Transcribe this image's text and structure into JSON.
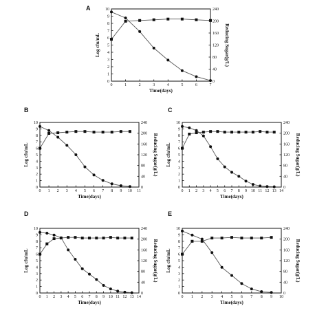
{
  "figure": {
    "background": "#ffffff",
    "ink": "#111111",
    "line_color": "#555555"
  },
  "chart_data": [
    {
      "panel": "A",
      "type": "line",
      "xlabel": "Time(days)",
      "ylabel": "Log cfu/mL",
      "y2label": "Reducing Sugar(g/L)",
      "xlim": [
        0,
        7
      ],
      "ylim": [
        0,
        10
      ],
      "y2lim": [
        0,
        240
      ],
      "xticks": [
        0,
        1,
        2,
        3,
        4,
        5,
        6,
        7
      ],
      "yticks": [
        0,
        1,
        2,
        3,
        4,
        5,
        6,
        7,
        8,
        9,
        10
      ],
      "y2ticks": [
        0,
        40,
        80,
        120,
        160,
        200,
        240
      ],
      "grid": false,
      "legend": "none",
      "series": [
        {
          "axis": "left",
          "marker": "square",
          "x": [
            0,
            1,
            2,
            3,
            4,
            5,
            6,
            7
          ],
          "y": [
            5.8,
            8.3,
            8.4,
            8.5,
            8.6,
            8.6,
            8.5,
            8.4
          ]
        },
        {
          "axis": "right",
          "marker": "circle",
          "x": [
            0,
            1,
            2,
            3,
            4,
            5,
            6,
            7
          ],
          "y": [
            230,
            210,
            165,
            110,
            70,
            35,
            15,
            2
          ]
        }
      ]
    },
    {
      "panel": "B",
      "type": "line",
      "xlabel": "Time(days)",
      "ylabel": "Log cfu/mL",
      "y2label": "Reducing Sugar(g/L)",
      "xlim": [
        0,
        11
      ],
      "ylim": [
        0,
        10
      ],
      "y2lim": [
        0,
        240
      ],
      "xticks": [
        0,
        1,
        2,
        3,
        4,
        5,
        6,
        7,
        8,
        9,
        10,
        11
      ],
      "yticks": [
        0,
        1,
        2,
        3,
        4,
        5,
        6,
        7,
        8,
        9,
        10
      ],
      "y2ticks": [
        0,
        40,
        80,
        120,
        160,
        200,
        240
      ],
      "grid": false,
      "legend": "none",
      "series": [
        {
          "axis": "left",
          "marker": "square",
          "x": [
            0,
            1,
            2,
            3,
            4,
            5,
            6,
            7,
            8,
            9,
            10
          ],
          "y": [
            6,
            8.3,
            8.4,
            8.5,
            8.6,
            8.6,
            8.5,
            8.5,
            8.5,
            8.6,
            8.6
          ]
        },
        {
          "axis": "right",
          "marker": "circle",
          "x": [
            0,
            1,
            2,
            3,
            4,
            5,
            6,
            7,
            8,
            9,
            10
          ],
          "y": [
            225,
            210,
            185,
            155,
            120,
            75,
            45,
            25,
            12,
            5,
            2
          ]
        }
      ]
    },
    {
      "panel": "C",
      "type": "line",
      "xlabel": "Time(days)",
      "ylabel": "Log cfu/mL",
      "y2label": "Reducing Sugar(g/L)",
      "xlim": [
        0,
        14
      ],
      "ylim": [
        0,
        10
      ],
      "y2lim": [
        0,
        240
      ],
      "xticks": [
        0,
        1,
        2,
        3,
        4,
        5,
        6,
        7,
        8,
        9,
        10,
        11,
        12,
        13,
        14
      ],
      "yticks": [
        0,
        1,
        2,
        3,
        4,
        5,
        6,
        7,
        8,
        9,
        10
      ],
      "y2ticks": [
        0,
        40,
        80,
        120,
        160,
        200,
        240
      ],
      "grid": false,
      "legend": "none",
      "series": [
        {
          "axis": "left",
          "marker": "square",
          "x": [
            0,
            1,
            2,
            3,
            4,
            5,
            6,
            7,
            8,
            9,
            10,
            11,
            12,
            13
          ],
          "y": [
            6,
            8.2,
            8.4,
            8.5,
            8.6,
            8.6,
            8.5,
            8.5,
            8.5,
            8.5,
            8.5,
            8.6,
            8.5,
            8.5
          ]
        },
        {
          "axis": "right",
          "marker": "circle",
          "x": [
            0,
            1,
            2,
            3,
            4,
            5,
            6,
            7,
            8,
            9,
            10,
            11,
            12,
            13
          ],
          "y": [
            225,
            220,
            210,
            190,
            150,
            105,
            75,
            55,
            40,
            22,
            10,
            4,
            2,
            1
          ]
        }
      ]
    },
    {
      "panel": "D",
      "type": "line",
      "xlabel": "Time(days)",
      "ylabel": "Log cfu/mL",
      "y2label": "Reducing Sugar(g/L)",
      "xlim": [
        0,
        14
      ],
      "ylim": [
        0,
        10
      ],
      "y2lim": [
        0,
        240
      ],
      "xticks": [
        0,
        1,
        2,
        3,
        4,
        5,
        6,
        7,
        8,
        9,
        10,
        11,
        12,
        13,
        14
      ],
      "yticks": [
        0,
        1,
        2,
        3,
        4,
        5,
        6,
        7,
        8,
        9,
        10
      ],
      "y2ticks": [
        0,
        40,
        80,
        120,
        160,
        200,
        240
      ],
      "grid": false,
      "legend": "none",
      "series": [
        {
          "axis": "left",
          "marker": "square",
          "x": [
            0,
            1,
            2,
            3,
            4,
            5,
            6,
            7,
            8,
            9,
            10,
            11,
            12,
            13
          ],
          "y": [
            6,
            7.6,
            8.4,
            8.5,
            8.6,
            8.6,
            8.5,
            8.5,
            8.5,
            8.5,
            8.6,
            8.5,
            8.5,
            8.5
          ]
        },
        {
          "axis": "right",
          "marker": "circle",
          "x": [
            0,
            1,
            2,
            3,
            4,
            5,
            6,
            7,
            8,
            9,
            10,
            11,
            12,
            13
          ],
          "y": [
            225,
            222,
            215,
            205,
            160,
            125,
            90,
            70,
            50,
            28,
            15,
            7,
            3,
            1
          ]
        }
      ]
    },
    {
      "panel": "E",
      "type": "line",
      "xlabel": "Time(days)",
      "ylabel": "Log cfu/mL",
      "y2label": "Reducing Sugar(g/L)",
      "xlim": [
        0,
        10
      ],
      "ylim": [
        0,
        10
      ],
      "y2lim": [
        0,
        240
      ],
      "xticks": [
        0,
        1,
        2,
        3,
        4,
        5,
        6,
        7,
        8,
        9,
        10
      ],
      "yticks": [
        0,
        1,
        2,
        3,
        4,
        5,
        6,
        7,
        8,
        9,
        10
      ],
      "y2ticks": [
        0,
        40,
        80,
        120,
        160,
        200,
        240
      ],
      "grid": false,
      "legend": "none",
      "series": [
        {
          "axis": "left",
          "marker": "square",
          "x": [
            0,
            1,
            2,
            3,
            4,
            5,
            6,
            7,
            8,
            9
          ],
          "y": [
            6,
            8,
            8,
            8.5,
            8.5,
            8.6,
            8.5,
            8.5,
            8.5,
            8.6
          ]
        },
        {
          "axis": "right",
          "marker": "circle",
          "x": [
            0,
            1,
            2,
            3,
            4,
            5,
            6,
            7,
            8,
            9
          ],
          "y": [
            230,
            215,
            200,
            150,
            95,
            65,
            35,
            15,
            5,
            2
          ]
        }
      ]
    }
  ]
}
